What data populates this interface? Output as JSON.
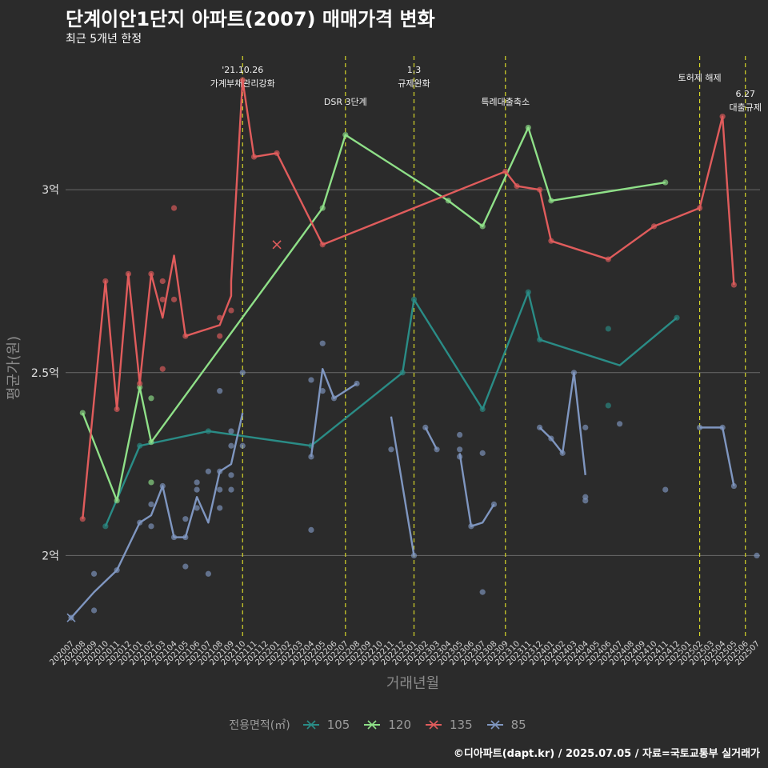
{
  "page": {
    "title": "단계이안1단지 아파트(2007) 매매가격 변화",
    "subtitle": "최근 5개년 한정",
    "caption": "©디아파트(dapt.kr) / 2025.07.05 / 자료=국토교통부 실거래가"
  },
  "chart_data": {
    "type": "line",
    "xlabel": "거래년월",
    "ylabel": "평균가(원)",
    "ylim": [
      1.78,
      3.3
    ],
    "yticks": [
      {
        "value": 2.0,
        "label": "2억"
      },
      {
        "value": 2.5,
        "label": "2.5억"
      },
      {
        "value": 3.0,
        "label": "3억"
      }
    ],
    "grid": true,
    "legend_title": "전용면적(㎡)",
    "legend_position": "bottom",
    "x_categories": [
      "202007",
      "202008",
      "202009",
      "202010",
      "202011",
      "202012",
      "202101",
      "202102",
      "202103",
      "202104",
      "202105",
      "202106",
      "202107",
      "202108",
      "202109",
      "202110",
      "202111",
      "202112",
      "202201",
      "202202",
      "202203",
      "202204",
      "202205",
      "202206",
      "202207",
      "202208",
      "202209",
      "202210",
      "202211",
      "202212",
      "202301",
      "202302",
      "202303",
      "202304",
      "202305",
      "202306",
      "202307",
      "202308",
      "202309",
      "202310",
      "202311",
      "202312",
      "202401",
      "202402",
      "202403",
      "202404",
      "202405",
      "202406",
      "202407",
      "202408",
      "202409",
      "202410",
      "202411",
      "202412",
      "202501",
      "202502",
      "202503",
      "202504",
      "202505",
      "202506",
      "202507"
    ],
    "events": [
      {
        "x": "202110",
        "label_lines": [
          "'21.10.26",
          "가계부채관리강화"
        ],
        "level": 0
      },
      {
        "x": "202207",
        "label_lines": [
          "DSR 3단계"
        ],
        "level": 1
      },
      {
        "x": "202301",
        "label_lines": [
          "1.3",
          "규제완화"
        ],
        "level": 0
      },
      {
        "x": "202309",
        "label_lines": [
          "특례대출축소"
        ],
        "level": 1
      },
      {
        "x": "202502",
        "label_lines": [
          "토허제 해제"
        ],
        "level": 0
      },
      {
        "x": "202506",
        "label_lines": [
          "6.27",
          "대출규제"
        ],
        "level": 2
      }
    ],
    "series": [
      {
        "name": "105",
        "color": "#2a8c86",
        "line": [
          [
            "202010",
            2.08
          ],
          [
            "202101",
            2.3
          ],
          [
            "202107",
            2.34
          ],
          [
            "202204",
            2.3
          ],
          [
            "202212",
            2.5
          ],
          [
            "202301",
            2.7
          ],
          [
            "202307",
            2.4
          ],
          [
            "202311",
            2.72
          ],
          [
            "202312",
            2.59
          ],
          [
            "202407",
            2.52
          ],
          [
            "202412",
            2.65
          ]
        ],
        "points": [
          [
            "202010",
            2.08
          ],
          [
            "202101",
            2.3
          ],
          [
            "202107",
            2.34
          ],
          [
            "202204",
            2.3
          ],
          [
            "202212",
            2.5
          ],
          [
            "202301",
            2.7
          ],
          [
            "202307",
            2.4
          ],
          [
            "202311",
            2.72
          ],
          [
            "202312",
            2.59
          ],
          [
            "202406",
            2.62
          ],
          [
            "202406",
            2.41
          ],
          [
            "202412",
            2.65
          ]
        ]
      },
      {
        "name": "120",
        "color": "#8fe088",
        "line": [
          [
            "202008",
            2.39
          ],
          [
            "202011",
            2.15
          ],
          [
            "202101",
            2.46
          ],
          [
            "202102",
            2.31
          ],
          [
            "202205",
            2.95
          ],
          [
            "202207",
            3.15
          ],
          [
            "202304",
            2.97
          ],
          [
            "202307",
            2.9
          ],
          [
            "202311",
            3.17
          ],
          [
            "202401",
            2.97
          ],
          [
            "202411",
            3.02
          ]
        ],
        "points": [
          [
            "202008",
            2.39
          ],
          [
            "202011",
            2.15
          ],
          [
            "202101",
            2.46
          ],
          [
            "202102",
            2.43
          ],
          [
            "202102",
            2.2
          ],
          [
            "202102",
            2.31
          ],
          [
            "202205",
            2.95
          ],
          [
            "202207",
            3.15
          ],
          [
            "202304",
            2.97
          ],
          [
            "202307",
            2.9
          ],
          [
            "202311",
            3.17
          ],
          [
            "202401",
            2.97
          ],
          [
            "202411",
            3.02
          ]
        ]
      },
      {
        "name": "135",
        "color": "#e05c5c",
        "line": [
          [
            "202008",
            2.1
          ],
          [
            "202010",
            2.75
          ],
          [
            "202011",
            2.4
          ],
          [
            "202012",
            2.77
          ],
          [
            "202101",
            2.47
          ],
          [
            "202102",
            2.77
          ],
          [
            "202103",
            2.65
          ],
          [
            "202104",
            2.82
          ],
          [
            "202105",
            2.6
          ],
          [
            "202108",
            2.63
          ],
          [
            "202109",
            2.71
          ],
          [
            "202109",
            2.75
          ],
          [
            "202110",
            3.3
          ],
          [
            "202111",
            3.09
          ],
          [
            "202201",
            3.1
          ],
          [
            "202205",
            2.85
          ],
          [
            "202309",
            3.05
          ],
          [
            "202310",
            3.01
          ],
          [
            "202312",
            3.0
          ],
          [
            "202401",
            2.86
          ],
          [
            "202406",
            2.81
          ],
          [
            "202410",
            2.9
          ],
          [
            "202502",
            2.95
          ],
          [
            "202504",
            3.2
          ],
          [
            "202505",
            2.74
          ]
        ],
        "points": [
          [
            "202008",
            2.1
          ],
          [
            "202010",
            2.75
          ],
          [
            "202011",
            2.4
          ],
          [
            "202012",
            2.77
          ],
          [
            "202101",
            2.47
          ],
          [
            "202102",
            2.77
          ],
          [
            "202103",
            2.75
          ],
          [
            "202103",
            2.7
          ],
          [
            "202103",
            2.51
          ],
          [
            "202104",
            2.95
          ],
          [
            "202104",
            2.7
          ],
          [
            "202105",
            2.6
          ],
          [
            "202108",
            2.65
          ],
          [
            "202108",
            2.6
          ],
          [
            "202109",
            2.67
          ],
          [
            "202110",
            3.3
          ],
          [
            "202111",
            3.09
          ],
          [
            "202201",
            3.1
          ],
          [
            "202205",
            2.85
          ],
          [
            "202309",
            3.05
          ],
          [
            "202310",
            3.01
          ],
          [
            "202312",
            3.0
          ],
          [
            "202401",
            2.86
          ],
          [
            "202406",
            2.81
          ],
          [
            "202410",
            2.9
          ],
          [
            "202502",
            2.95
          ],
          [
            "202504",
            3.2
          ],
          [
            "202505",
            2.74
          ]
        ],
        "x_markers": [
          [
            "202201",
            2.85
          ]
        ]
      },
      {
        "name": "85",
        "color": "#7f96c0",
        "line": [
          [
            "202007",
            1.83
          ],
          [
            "202009",
            1.9
          ],
          [
            "202011",
            1.96
          ],
          [
            "202101",
            2.09
          ],
          [
            "202102",
            2.11
          ],
          [
            "202103",
            2.19
          ],
          [
            "202104",
            2.05
          ],
          [
            "202105",
            2.05
          ],
          [
            "202106",
            2.16
          ],
          [
            "202107",
            2.09
          ],
          [
            "202108",
            2.23
          ],
          [
            "202109",
            2.25
          ],
          [
            "202110",
            2.39
          ]
        ],
        "line2": [
          [
            "202204",
            2.27
          ],
          [
            "202205",
            2.51
          ],
          [
            "202206",
            2.43
          ],
          [
            "202208",
            2.47
          ]
        ],
        "line3": [
          [
            "202211",
            2.38
          ],
          [
            "202301",
            2.0
          ]
        ],
        "line4": [
          [
            "202302",
            2.35
          ],
          [
            "202303",
            2.29
          ]
        ],
        "line5": [
          [
            "202305",
            2.28
          ],
          [
            "202306",
            2.08
          ],
          [
            "202307",
            2.09
          ],
          [
            "202308",
            2.14
          ]
        ],
        "line6": [
          [
            "202312",
            2.35
          ],
          [
            "202401",
            2.32
          ],
          [
            "202402",
            2.28
          ],
          [
            "202403",
            2.5
          ],
          [
            "202404",
            2.22
          ]
        ],
        "line7": [
          [
            "202502",
            2.35
          ],
          [
            "202504",
            2.35
          ],
          [
            "202505",
            2.19
          ]
        ],
        "points": [
          [
            "202007",
            1.83
          ],
          [
            "202009",
            1.95
          ],
          [
            "202009",
            1.85
          ],
          [
            "202011",
            1.96
          ],
          [
            "202101",
            2.09
          ],
          [
            "202102",
            2.14
          ],
          [
            "202102",
            2.08
          ],
          [
            "202103",
            2.19
          ],
          [
            "202104",
            2.05
          ],
          [
            "202105",
            2.1
          ],
          [
            "202105",
            2.05
          ],
          [
            "202105",
            1.97
          ],
          [
            "202106",
            2.2
          ],
          [
            "202106",
            2.18
          ],
          [
            "202106",
            2.13
          ],
          [
            "202107",
            2.23
          ],
          [
            "202107",
            1.95
          ],
          [
            "202108",
            2.45
          ],
          [
            "202108",
            2.23
          ],
          [
            "202108",
            2.18
          ],
          [
            "202108",
            2.13
          ],
          [
            "202109",
            2.34
          ],
          [
            "202109",
            2.3
          ],
          [
            "202109",
            2.22
          ],
          [
            "202109",
            2.18
          ],
          [
            "202110",
            2.5
          ],
          [
            "202110",
            2.3
          ],
          [
            "202204",
            2.48
          ],
          [
            "202204",
            2.27
          ],
          [
            "202204",
            2.07
          ],
          [
            "202205",
            2.58
          ],
          [
            "202205",
            2.45
          ],
          [
            "202206",
            2.43
          ],
          [
            "202208",
            2.47
          ],
          [
            "202211",
            2.29
          ],
          [
            "202301",
            2.0
          ],
          [
            "202302",
            2.35
          ],
          [
            "202303",
            2.29
          ],
          [
            "202305",
            2.33
          ],
          [
            "202305",
            2.29
          ],
          [
            "202305",
            2.27
          ],
          [
            "202306",
            2.08
          ],
          [
            "202307",
            2.28
          ],
          [
            "202307",
            1.9
          ],
          [
            "202308",
            2.14
          ],
          [
            "202312",
            2.35
          ],
          [
            "202401",
            2.32
          ],
          [
            "202402",
            2.28
          ],
          [
            "202403",
            2.5
          ],
          [
            "202404",
            2.35
          ],
          [
            "202404",
            2.16
          ],
          [
            "202404",
            2.15
          ],
          [
            "202407",
            2.36
          ],
          [
            "202411",
            2.18
          ],
          [
            "202502",
            2.35
          ],
          [
            "202504",
            2.35
          ],
          [
            "202505",
            2.19
          ],
          [
            "202507",
            2.0
          ]
        ],
        "x_markers": [
          [
            "202007",
            1.83
          ]
        ]
      }
    ]
  }
}
